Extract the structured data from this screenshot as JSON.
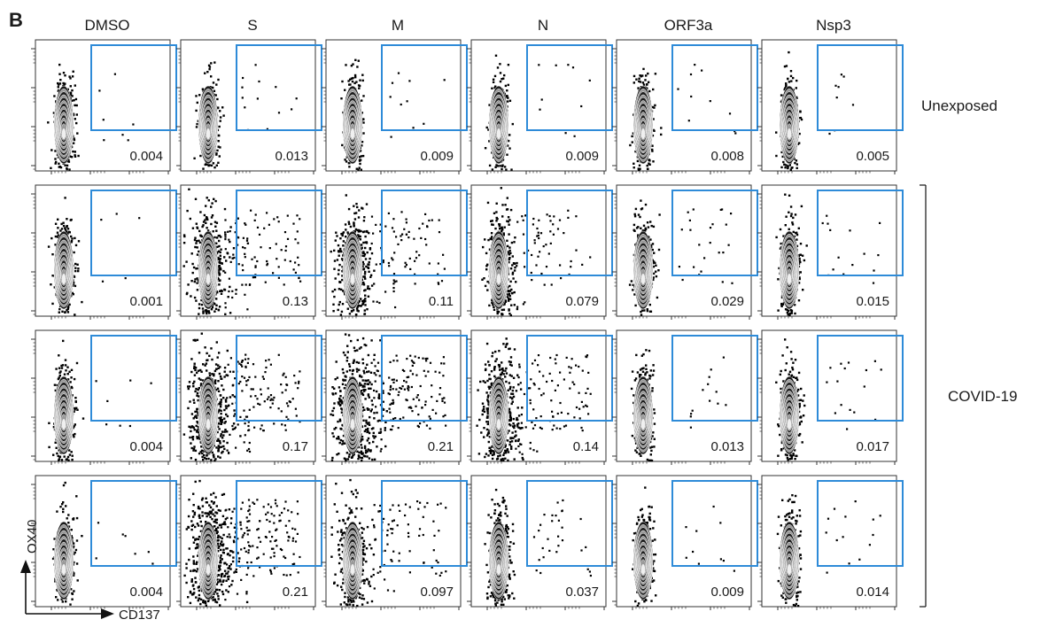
{
  "panel_letter": "B",
  "stimuli": [
    "DMSO",
    "S",
    "M",
    "N",
    "ORF3a",
    "Nsp3"
  ],
  "groups": [
    {
      "label": "Unexposed",
      "rows": 1
    },
    {
      "label": "COVID-19",
      "rows": 3
    }
  ],
  "axes": {
    "x_label": "CD137",
    "y_label": "OX40"
  },
  "gate_percentages": [
    [
      "0.004",
      "0.013",
      "0.009",
      "0.009",
      "0.008",
      "0.005"
    ],
    [
      "0.001",
      "0.13",
      "0.11",
      "0.079",
      "0.029",
      "0.015"
    ],
    [
      "0.004",
      "0.17",
      "0.21",
      "0.14",
      "0.013",
      "0.017"
    ],
    [
      "0.004",
      "0.21",
      "0.097",
      "0.037",
      "0.009",
      "0.014"
    ]
  ],
  "colors": {
    "gate": "#2e8bd8",
    "axis": "#333333",
    "points": "#000000"
  }
}
